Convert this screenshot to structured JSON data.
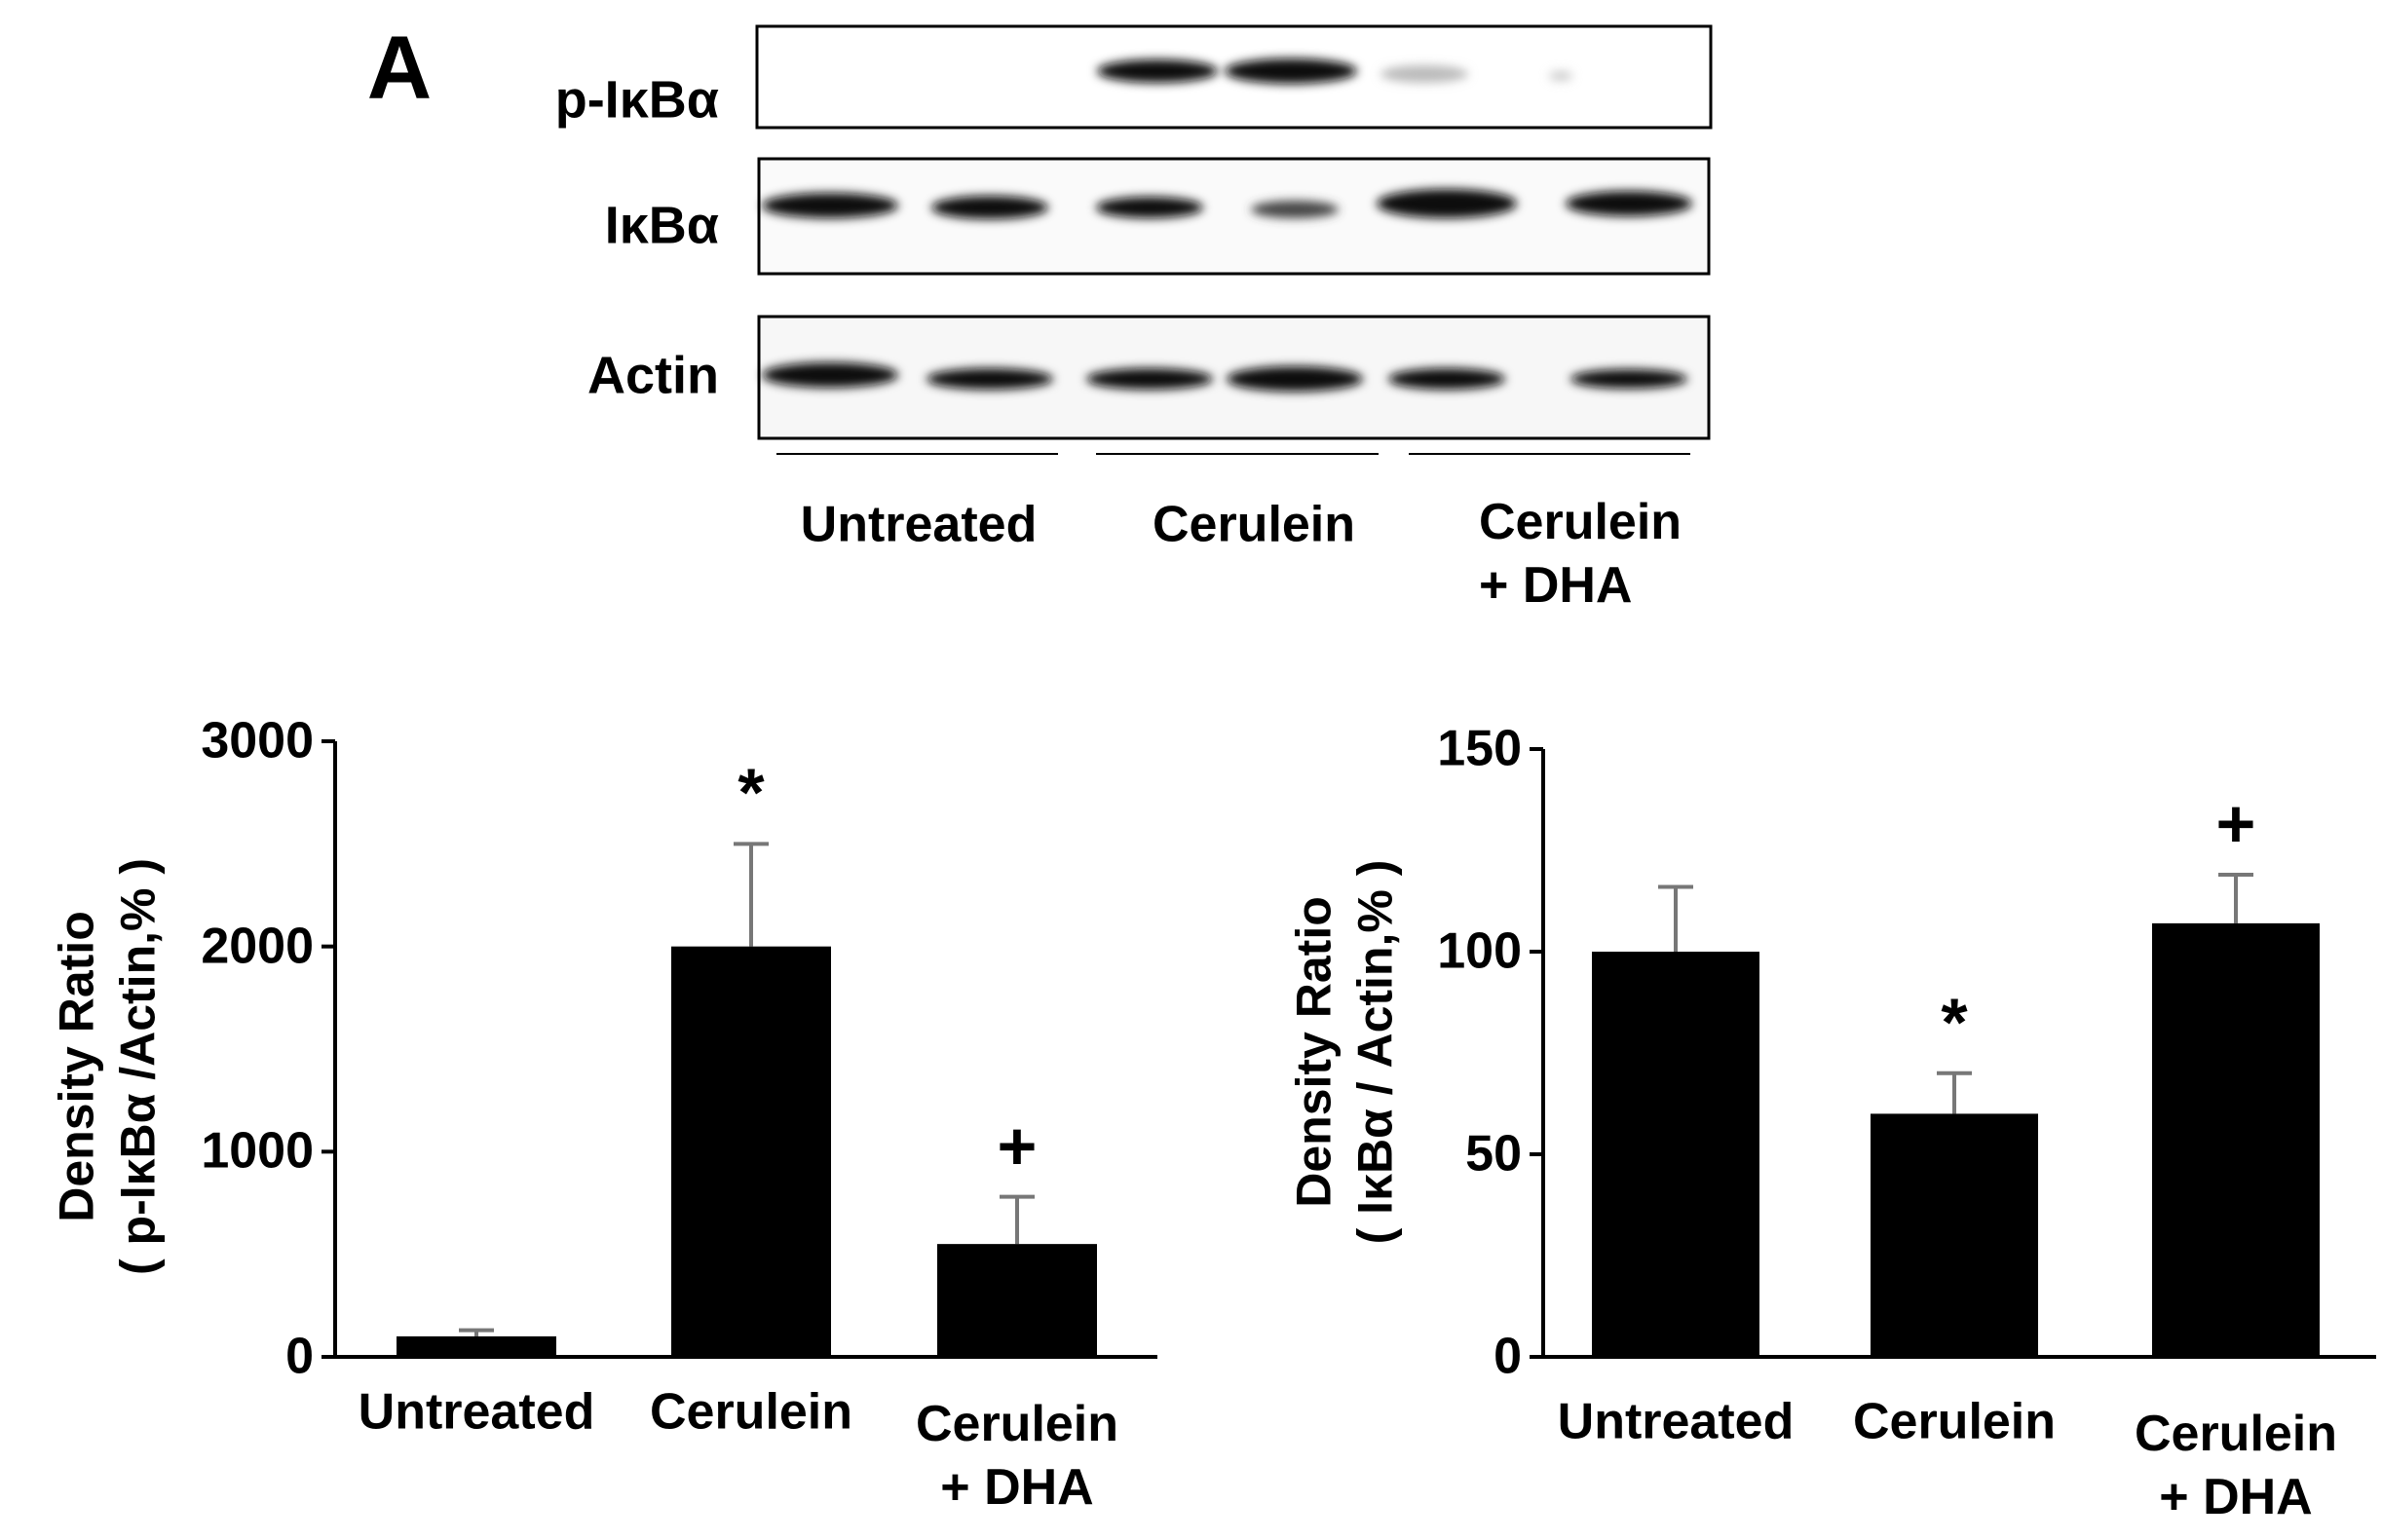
{
  "panel_label": "A",
  "blot": {
    "rows": [
      "p-IκBα",
      "IκBα",
      "Actin"
    ],
    "groups": [
      "Untreated",
      "Cerulein",
      "Cerulein\n+ DHA"
    ]
  },
  "chart_data": [
    {
      "type": "bar",
      "y_label": "Density Ratio\n( p-IκBα /Actin,% )",
      "categories": [
        "Untreated",
        "Cerulein",
        "Cerulein\n+ DHA"
      ],
      "values": [
        100,
        2000,
        550
      ],
      "errors": [
        30,
        500,
        230
      ],
      "annotations": [
        null,
        "*",
        "+"
      ],
      "color": "#000000",
      "ylim": [
        0,
        3000
      ],
      "yticks": [
        0,
        1000,
        2000,
        3000
      ]
    },
    {
      "type": "bar",
      "y_label": "Density Ratio\n( IκBα / Actin,% )",
      "categories": [
        "Untreated",
        "Cerulein",
        "Cerulein\n+ DHA"
      ],
      "values": [
        100,
        60,
        107
      ],
      "errors": [
        16,
        10,
        12
      ],
      "annotations": [
        null,
        "*",
        "+"
      ],
      "color": "#000000",
      "ylim": [
        0,
        150
      ],
      "yticks": [
        0,
        50,
        100,
        150
      ]
    }
  ]
}
